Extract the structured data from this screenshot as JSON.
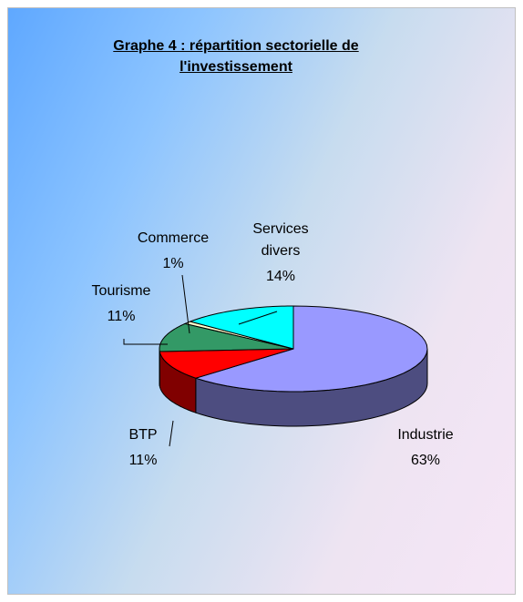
{
  "chart_data": {
    "type": "pie3d",
    "title": "Graphe 4 : répartition sectorielle de l'investissement",
    "categories": [
      "Industrie",
      "BTP",
      "Tourisme",
      "Commerce",
      "Services divers"
    ],
    "values": [
      63,
      11,
      11,
      1,
      14
    ],
    "value_labels": [
      "63%",
      "11%",
      "11%",
      "1%",
      "14%"
    ],
    "colors": [
      "#9999ff",
      "#ff0000",
      "#339966",
      "#ffffcc",
      "#00ffff"
    ]
  }
}
